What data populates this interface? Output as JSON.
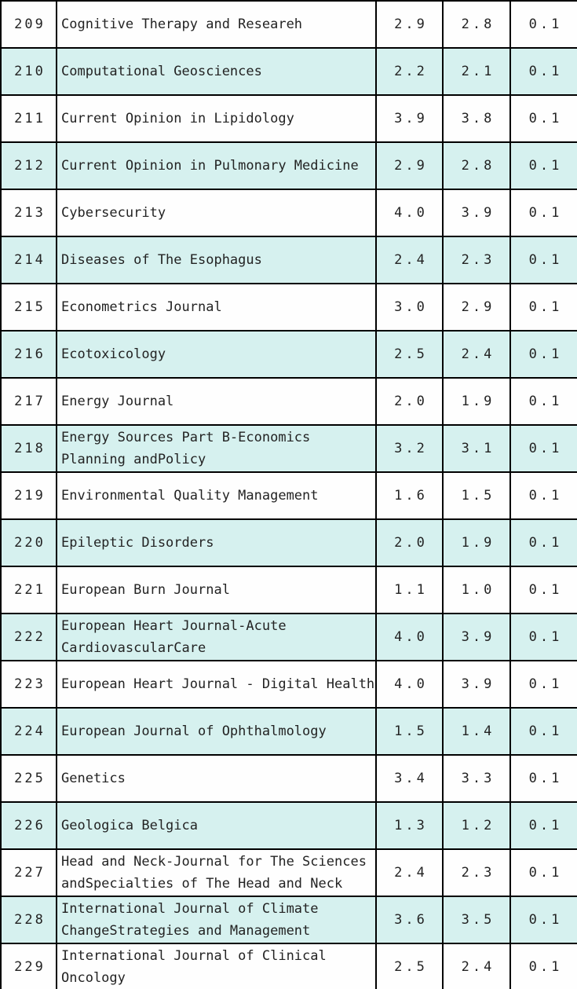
{
  "colors": {
    "row_bg": "#fefefe",
    "row_alt_bg": "#d6f1ef",
    "border": "#000000",
    "text": "#232323"
  },
  "table": {
    "rows": [
      {
        "no": "209",
        "journal": "Cognitive Therapy and Researeh",
        "val1": "2.9",
        "val2": "2.8",
        "val3": "0.1"
      },
      {
        "no": "210",
        "journal": "Computational Geosciences",
        "val1": "2.2",
        "val2": "2.1",
        "val3": "0.1"
      },
      {
        "no": "211",
        "journal": "Current Opinion in Lipidology",
        "val1": "3.9",
        "val2": "3.8",
        "val3": "0.1"
      },
      {
        "no": "212",
        "journal": "Current Opinion in Pulmonary Medicine",
        "val1": "2.9",
        "val2": "2.8",
        "val3": "0.1"
      },
      {
        "no": "213",
        "journal": "Cybersecurity",
        "val1": "4.0",
        "val2": "3.9",
        "val3": "0.1"
      },
      {
        "no": "214",
        "journal": "Diseases of The Esophagus",
        "val1": "2.4",
        "val2": "2.3",
        "val3": "0.1"
      },
      {
        "no": "215",
        "journal": "Econometrics Journal",
        "val1": "3.0",
        "val2": "2.9",
        "val3": "0.1"
      },
      {
        "no": "216",
        "journal": "Ecotoxicology",
        "val1": "2.5",
        "val2": "2.4",
        "val3": "0.1"
      },
      {
        "no": "217",
        "journal": "Energy Journal",
        "val1": "2.0",
        "val2": "1.9",
        "val3": "0.1"
      },
      {
        "no": "218",
        "journal": "Energy Sources Part B-Economics\nPlanning andPolicy",
        "val1": "3.2",
        "val2": "3.1",
        "val3": "0.1"
      },
      {
        "no": "219",
        "journal": "Environmental Quality Management",
        "val1": "1.6",
        "val2": "1.5",
        "val3": "0.1"
      },
      {
        "no": "220",
        "journal": "Epileptic Disorders",
        "val1": "2.0",
        "val2": "1.9",
        "val3": "0.1"
      },
      {
        "no": "221",
        "journal": "European Burn Journal",
        "val1": "1.1",
        "val2": "1.0",
        "val3": "0.1"
      },
      {
        "no": "222",
        "journal": "European Heart Journal-Acute\nCardiovascularCare",
        "val1": "4.0",
        "val2": "3.9",
        "val3": "0.1"
      },
      {
        "no": "223",
        "journal": "European Heart Journal - Digital Health",
        "val1": "4.0",
        "val2": "3.9",
        "val3": "0.1"
      },
      {
        "no": "224",
        "journal": "European Journal of Ophthalmology",
        "val1": "1.5",
        "val2": "1.4",
        "val3": "0.1"
      },
      {
        "no": "225",
        "journal": "Genetics",
        "val1": "3.4",
        "val2": "3.3",
        "val3": "0.1"
      },
      {
        "no": "226",
        "journal": "Geologica Belgica",
        "val1": "1.3",
        "val2": "1.2",
        "val3": "0.1"
      },
      {
        "no": "227",
        "journal": "Head and Neck-Journal for The Sciences\nandSpecialties of The Head and Neck",
        "val1": "2.4",
        "val2": "2.3",
        "val3": "0.1"
      },
      {
        "no": "228",
        "journal": "International Journal of Climate\nChangeStrategies and Management",
        "val1": "3.6",
        "val2": "3.5",
        "val3": "0.1"
      },
      {
        "no": "229",
        "journal": "International Journal of Clinical\nOncology",
        "val1": "2.5",
        "val2": "2.4",
        "val3": "0.1"
      }
    ]
  }
}
